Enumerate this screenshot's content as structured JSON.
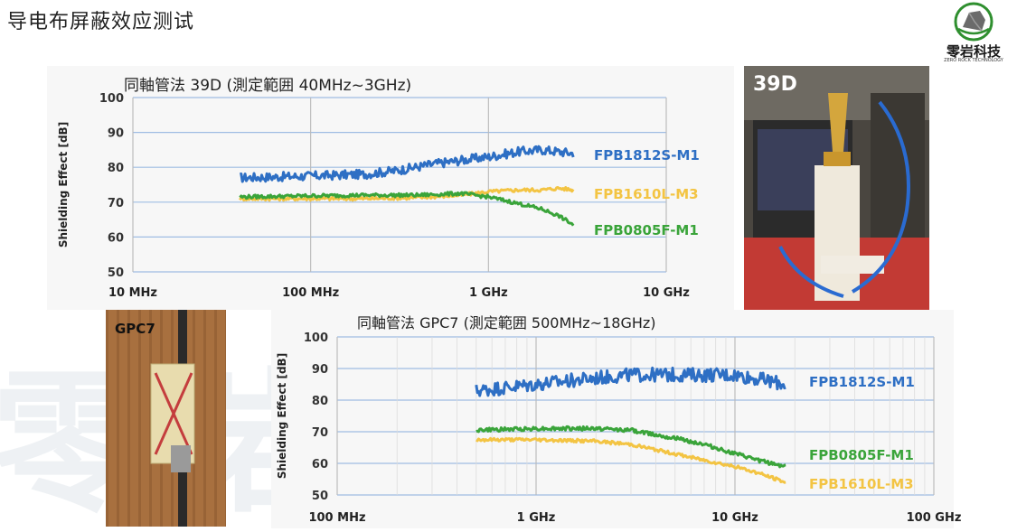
{
  "page": {
    "title": "导电布屏蔽效应测试"
  },
  "logo": {
    "name": "零岩科技",
    "sub": "ZERO ROCK TECHNOLOGY",
    "watermark_text": "零岩科技"
  },
  "photos": [
    {
      "label": "39D"
    },
    {
      "label": "GPC7"
    }
  ],
  "chart_data": [
    {
      "type": "line",
      "title": "同軸管法 39D (測定範囲  40MHz~3GHz)",
      "ylabel": "Shielding Effect [dB]",
      "xlabel": "",
      "x_scale": "log",
      "xlim_hz": [
        10000000,
        10000000000
      ],
      "ylim": [
        50,
        100
      ],
      "yticks": [
        50,
        60,
        70,
        80,
        90,
        100
      ],
      "xticks": [
        {
          "value": 10000000,
          "label": "10 MHz"
        },
        {
          "value": 100000000,
          "label": "100 MHz"
        },
        {
          "value": 1000000000,
          "label": "1 GHz"
        },
        {
          "value": 10000000000,
          "label": "10 GHz"
        }
      ],
      "grid": "horizontal",
      "series": [
        {
          "name": "FPB1812S-M1",
          "color": "#2e6fc4",
          "noise": 1.3,
          "x_hz": [
            40000000,
            100000000,
            200000000,
            300000000,
            500000000,
            700000000,
            1000000000,
            1500000000,
            2000000000,
            3000000000
          ],
          "y": [
            77,
            77.5,
            78,
            79,
            81,
            82,
            83,
            84.5,
            85,
            84
          ]
        },
        {
          "name": "FPB1610L-M3",
          "color": "#f3c443",
          "noise": 0.5,
          "x_hz": [
            40000000,
            100000000,
            200000000,
            400000000,
            700000000,
            1000000000,
            1500000000,
            2000000000,
            2500000000,
            3000000000
          ],
          "y": [
            71,
            71,
            71,
            71.3,
            72,
            73,
            73.5,
            73.5,
            74,
            73.5
          ]
        },
        {
          "name": "FPB0805F-M1",
          "color": "#3aa43a",
          "noise": 0.5,
          "x_hz": [
            40000000,
            100000000,
            200000000,
            400000000,
            700000000,
            1000000000,
            1500000000,
            2000000000,
            2500000000,
            3000000000
          ],
          "y": [
            71.5,
            71.8,
            72,
            72,
            72.5,
            71.5,
            69.5,
            68,
            66,
            63.5
          ]
        }
      ]
    },
    {
      "type": "line",
      "title": "同軸管法 GPC7 (測定範囲  500MHz~18GHz)",
      "ylabel": "Shielding Effect [dB]",
      "xlabel": "",
      "x_scale": "log",
      "xlim_hz": [
        100000000,
        100000000000
      ],
      "ylim": [
        50,
        100
      ],
      "yticks": [
        50,
        60,
        70,
        80,
        90,
        100
      ],
      "xticks": [
        {
          "value": 100000000,
          "label": "100 MHz"
        },
        {
          "value": 1000000000,
          "label": "1 GHz"
        },
        {
          "value": 10000000000,
          "label": "10 GHz"
        },
        {
          "value": 100000000000,
          "label": "100 GHz"
        }
      ],
      "grid": "both",
      "series": [
        {
          "name": "FPB1812S-M1",
          "color": "#2e6fc4",
          "noise": 2.2,
          "x_hz": [
            500000000,
            700000000,
            1000000000,
            2000000000,
            3000000000,
            5000000000,
            8000000000,
            10000000000,
            15000000000,
            18000000000
          ],
          "y": [
            83,
            84,
            85,
            87,
            88,
            88,
            88,
            88,
            86,
            85
          ]
        },
        {
          "name": "FPB0805F-M1",
          "color": "#3aa43a",
          "noise": 0.6,
          "x_hz": [
            500000000,
            1000000000,
            2000000000,
            3000000000,
            5000000000,
            7000000000,
            10000000000,
            13000000000,
            18000000000
          ],
          "y": [
            70.5,
            71,
            71,
            70.5,
            68,
            66,
            63,
            61,
            59
          ]
        },
        {
          "name": "FPB1610L-M3",
          "color": "#f3c443",
          "noise": 0.5,
          "x_hz": [
            500000000,
            1000000000,
            2000000000,
            3000000000,
            5000000000,
            7000000000,
            10000000000,
            13000000000,
            18000000000
          ],
          "y": [
            67.5,
            67.5,
            67,
            66,
            63,
            61,
            59,
            57,
            54
          ]
        }
      ]
    }
  ]
}
